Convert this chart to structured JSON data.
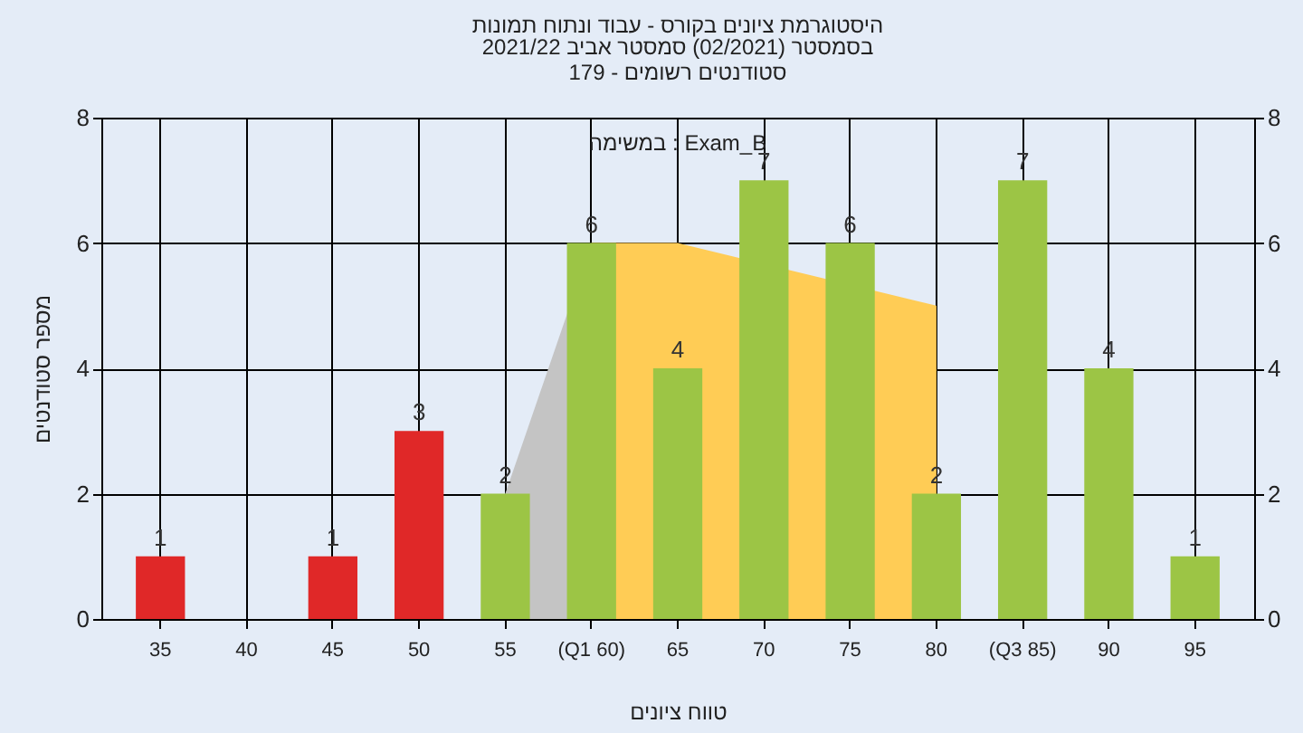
{
  "chart_data": {
    "type": "bar",
    "title": "היסטוגרמת ציונים בקורס - עבוד ונתוח תמונות",
    "subtitle": "בסמסטר  (02/2021)  סמסטר אביב 2021/22\nסטודנטים רשומים - 179",
    "xlabel": "טווח ציונים",
    "ylabel": "מספר סטודנטים",
    "annotations": [
      "במשימה : Exam_B"
    ],
    "categories": [
      "35",
      "40",
      "45",
      "50",
      "55",
      "(Q1 60)",
      "65",
      "70",
      "75",
      "80",
      "(Q3 85)",
      "90",
      "95"
    ],
    "series": [
      {
        "type": "area",
        "color": "#c4c4c4",
        "values": [
          null,
          null,
          null,
          null,
          2,
          6,
          null,
          null,
          null,
          null,
          null,
          null,
          null
        ]
      },
      {
        "type": "area",
        "color": "#ffcc55",
        "values": [
          null,
          null,
          null,
          null,
          null,
          6,
          6,
          null,
          null,
          5,
          null,
          null,
          null
        ]
      },
      {
        "colors": [
          "#e02828",
          "#e02828",
          "#e02828",
          "#e02828",
          "#9cc545",
          "#9cc545",
          "#9cc545",
          "#9cc545",
          "#9cc545",
          "#9cc545",
          "#9cc545",
          "#9cc545",
          "#9cc545"
        ],
        "values": [
          1,
          0,
          1,
          3,
          2,
          6,
          4,
          7,
          6,
          2,
          7,
          4,
          1
        ],
        "value_labels": [
          "1",
          null,
          "1",
          "3",
          "2",
          "6",
          "4",
          "7",
          "6",
          "2",
          "7",
          "4",
          "1"
        ]
      }
    ],
    "ylim": [
      0,
      8
    ],
    "yticks": [
      0,
      2,
      4,
      6,
      8
    ],
    "y2lim": [
      0,
      8
    ],
    "y2ticks": [
      0,
      2,
      4,
      6,
      8
    ],
    "grid": true
  }
}
